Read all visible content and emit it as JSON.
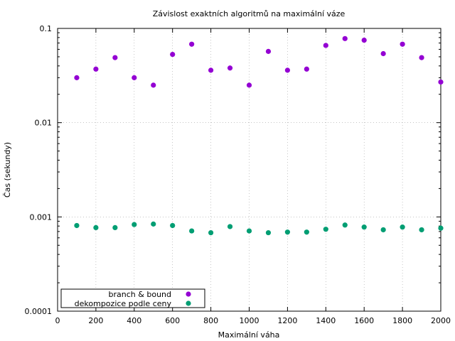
{
  "chart_data": {
    "type": "scatter",
    "title": "Závislost exaktních algoritmů na maximální váze",
    "xlabel": "Maximální váha",
    "ylabel": "Čas (sekundy)",
    "xlim": [
      0,
      2000
    ],
    "ylim": [
      0.0001,
      0.1
    ],
    "yscale": "log",
    "grid": true,
    "legend_position": "bottom-left",
    "x_ticks": [
      "0",
      "200",
      "400",
      "600",
      "800",
      "1000",
      "1200",
      "1400",
      "1600",
      "1800",
      "2000"
    ],
    "y_ticks": [
      "0.0001",
      "0.001",
      "0.01",
      "0.1"
    ],
    "x": [
      100,
      200,
      300,
      400,
      500,
      600,
      700,
      800,
      900,
      1000,
      1100,
      1200,
      1300,
      1400,
      1500,
      1600,
      1700,
      1800,
      1900,
      2000
    ],
    "series": [
      {
        "name": "branch & bound",
        "color": "#9400d3",
        "values": [
          0.03,
          0.037,
          0.049,
          0.03,
          0.025,
          0.053,
          0.068,
          0.036,
          0.038,
          0.025,
          0.057,
          0.036,
          0.037,
          0.066,
          0.078,
          0.075,
          0.054,
          0.068,
          0.049,
          0.027
        ]
      },
      {
        "name": "dekompozice podle ceny",
        "color": "#009e73",
        "values": [
          0.00081,
          0.00077,
          0.00077,
          0.00083,
          0.00084,
          0.00081,
          0.00071,
          0.00068,
          0.00079,
          0.00071,
          0.00068,
          0.00069,
          0.00069,
          0.00074,
          0.00082,
          0.00078,
          0.00073,
          0.00078,
          0.00073,
          0.00076
        ]
      }
    ]
  }
}
